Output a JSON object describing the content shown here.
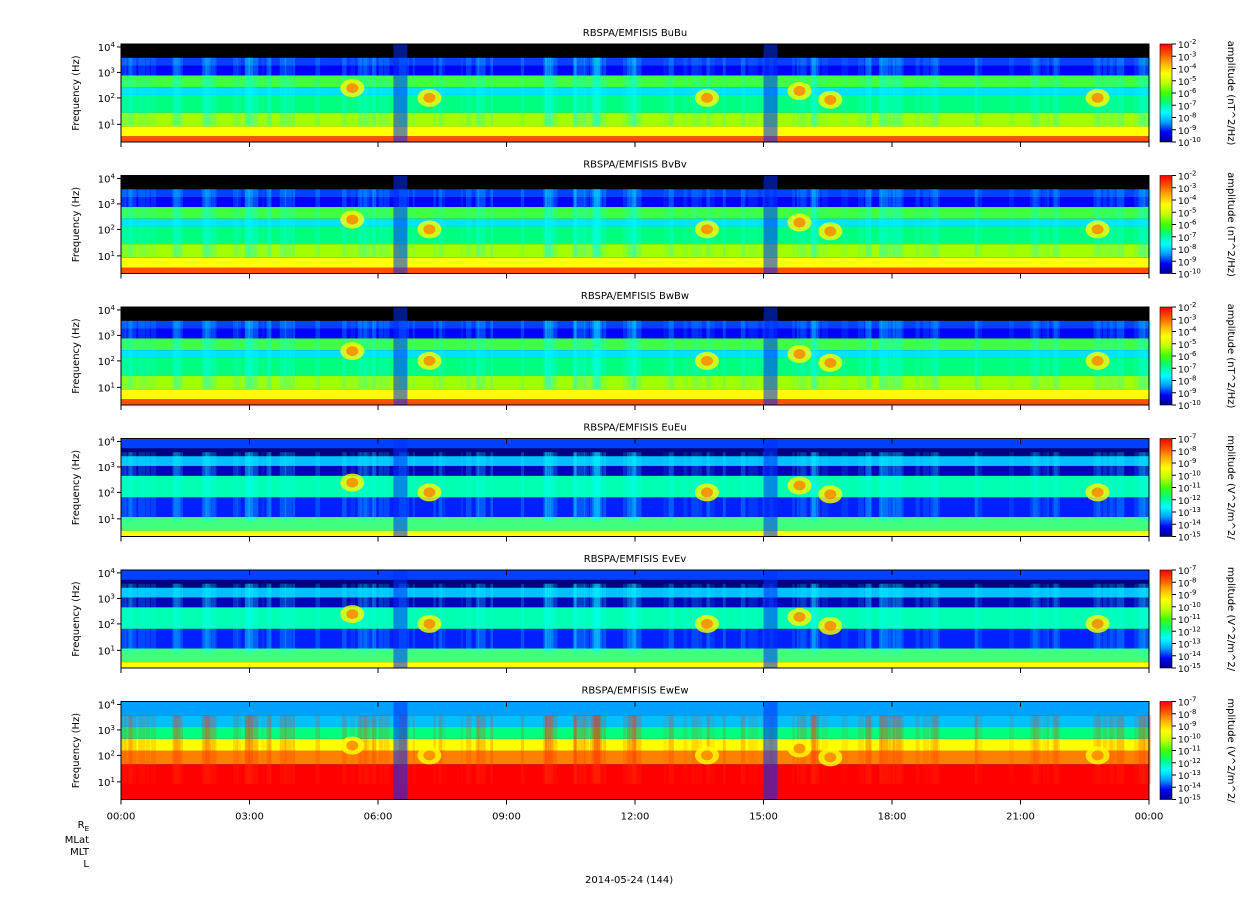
{
  "chart_data": [
    {
      "type": "heatmap",
      "title": "RBSPA/EMFISIS  BuBu",
      "ylabel": "Frequency (Hz)",
      "yscale": "log",
      "yticks": [
        "10^1",
        "10^2",
        "10^3",
        "10^4"
      ],
      "colorbar_label": "amplitude (nT^2/Hz)",
      "colorbar_ticks": [
        "10^-2",
        "10^-3",
        "10^-4",
        "10^-5",
        "10^-6",
        "10^-7",
        "10^-8",
        "10^-9",
        "10^-10"
      ],
      "field": "B"
    },
    {
      "type": "heatmap",
      "title": "RBSPA/EMFISIS  BvBv",
      "ylabel": "Frequency (Hz)",
      "yscale": "log",
      "yticks": [
        "10^1",
        "10^2",
        "10^3",
        "10^4"
      ],
      "colorbar_label": "amplitude (nT^2/Hz)",
      "colorbar_ticks": [
        "10^-2",
        "10^-3",
        "10^-4",
        "10^-5",
        "10^-6",
        "10^-7",
        "10^-8",
        "10^-9",
        "10^-10"
      ],
      "field": "B"
    },
    {
      "type": "heatmap",
      "title": "RBSPA/EMFISIS  BwBw",
      "ylabel": "Frequency (Hz)",
      "yscale": "log",
      "yticks": [
        "10^1",
        "10^2",
        "10^3",
        "10^4"
      ],
      "colorbar_label": "amplitude (nT^2/Hz)",
      "colorbar_ticks": [
        "10^-2",
        "10^-3",
        "10^-4",
        "10^-5",
        "10^-6",
        "10^-7",
        "10^-8",
        "10^-9",
        "10^-10"
      ],
      "field": "B"
    },
    {
      "type": "heatmap",
      "title": "RBSPA/EMFISIS  EuEu",
      "ylabel": "Frequency (Hz)",
      "yscale": "log",
      "yticks": [
        "10^1",
        "10^2",
        "10^3",
        "10^4"
      ],
      "colorbar_label": "mplitude (V^2/m^2/",
      "colorbar_ticks": [
        "10^-7",
        "10^-8",
        "10^-9",
        "10^-10",
        "10^-11",
        "10^-12",
        "10^-13",
        "10^-14",
        "10^-15"
      ],
      "field": "E"
    },
    {
      "type": "heatmap",
      "title": "RBSPA/EMFISIS  EvEv",
      "ylabel": "Frequency (Hz)",
      "yscale": "log",
      "yticks": [
        "10^1",
        "10^2",
        "10^3",
        "10^4"
      ],
      "colorbar_label": "mplitude (V^2/m^2/",
      "colorbar_ticks": [
        "10^-7",
        "10^-8",
        "10^-9",
        "10^-10",
        "10^-11",
        "10^-12",
        "10^-13",
        "10^-14",
        "10^-15"
      ],
      "field": "E"
    },
    {
      "type": "heatmap",
      "title": "RBSPA/EMFISIS  EwEw",
      "ylabel": "Frequency (Hz)",
      "yscale": "log",
      "yticks": [
        "10^1",
        "10^2",
        "10^3",
        "10^4"
      ],
      "colorbar_label": "mplitude (V^2/m^2/",
      "colorbar_ticks": [
        "10^-7",
        "10^-8",
        "10^-9",
        "10^-10",
        "10^-11",
        "10^-12",
        "10^-13",
        "10^-14",
        "10^-15"
      ],
      "field": "Ew"
    }
  ],
  "x_axis": {
    "tick_labels": [
      "00:00",
      "03:00",
      "06:00",
      "09:00",
      "12:00",
      "15:00",
      "18:00",
      "21:00",
      "00:00"
    ],
    "row_labels": [
      "R_E",
      "MLat",
      "MLT",
      "L"
    ],
    "date_label": "2014-05-24 (144)"
  },
  "colors": {
    "colormap": [
      "#00008c",
      "#0000ff",
      "#00a0ff",
      "#00ffff",
      "#00ff80",
      "#40ff00",
      "#c0ff00",
      "#ffff00",
      "#ffb000",
      "#ff5000",
      "#ff0000"
    ],
    "background": "#000000",
    "axis": "#000000"
  }
}
